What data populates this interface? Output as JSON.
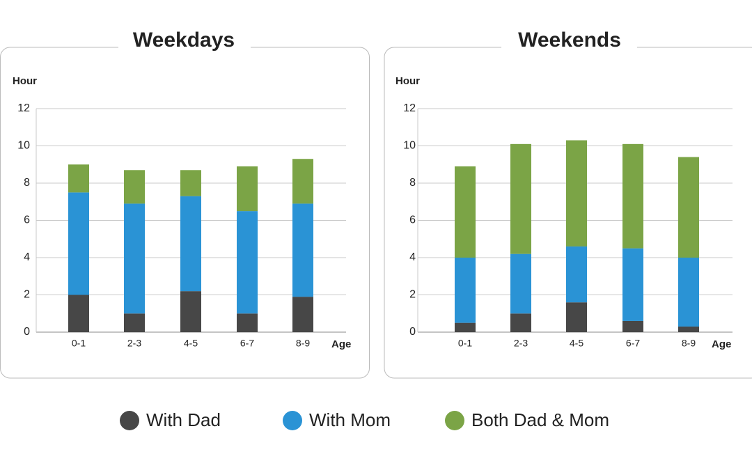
{
  "chart_data": [
    {
      "type": "stacked_bar",
      "title": "Weekdays",
      "y_label": "Hour",
      "x_label": "Age",
      "categories": [
        "0-1",
        "2-3",
        "4-5",
        "6-7",
        "8-9"
      ],
      "series": [
        {
          "name": "With Dad",
          "color": "#474747",
          "values": [
            2.0,
            1.0,
            2.2,
            1.0,
            1.9
          ]
        },
        {
          "name": "With Mom",
          "color": "#2a93d5",
          "values": [
            5.5,
            5.9,
            5.1,
            5.5,
            5.0
          ]
        },
        {
          "name": "Both Dad & Mom",
          "color": "#7ba446",
          "values": [
            1.5,
            1.8,
            1.4,
            2.4,
            2.4
          ]
        }
      ],
      "ylim": [
        0,
        12
      ],
      "yticks": [
        0,
        2,
        4,
        6,
        8,
        10,
        12
      ],
      "grid": true
    },
    {
      "type": "stacked_bar",
      "title": "Weekends",
      "y_label": "Hour",
      "x_label": "Age",
      "categories": [
        "0-1",
        "2-3",
        "4-5",
        "6-7",
        "8-9"
      ],
      "series": [
        {
          "name": "With Dad",
          "color": "#474747",
          "values": [
            0.5,
            1.0,
            1.6,
            0.6,
            0.3
          ]
        },
        {
          "name": "With Mom",
          "color": "#2a93d5",
          "values": [
            3.5,
            3.2,
            3.0,
            3.9,
            3.7
          ]
        },
        {
          "name": "Both Dad & Mom",
          "color": "#7ba446",
          "values": [
            4.9,
            5.9,
            5.7,
            5.6,
            5.4
          ]
        }
      ],
      "ylim": [
        0,
        12
      ],
      "yticks": [
        0,
        2,
        4,
        6,
        8,
        10,
        12
      ],
      "grid": true
    }
  ]
}
